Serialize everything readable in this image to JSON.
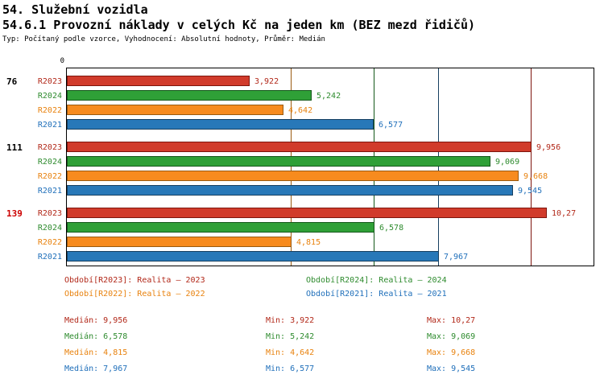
{
  "page": {
    "title_line1": "54. Služební vozidla",
    "title_line2": "54.6.1 Provozní náklady v celých Kč na jeden km (BEZ mezd řidičů)",
    "subtitle": "Typ: Počítaný podle vzorce, Vyhodnocení: Absolutní hodnoty, Průměr: Medián"
  },
  "series_styles": {
    "R2023": {
      "fill": "#d13b2b",
      "border": "#7e150d",
      "text": "#b22819"
    },
    "R2024": {
      "fill": "#2fa037",
      "border": "#14581a",
      "text": "#2e8b2e"
    },
    "R2022": {
      "fill": "#f78b1e",
      "border": "#9a5a10",
      "text": "#e8820e"
    },
    "R2021": {
      "fill": "#2878b8",
      "border": "#163f60",
      "text": "#1f6fba"
    }
  },
  "chart_data": {
    "type": "bar",
    "orientation": "horizontal",
    "title": "54.6.1 Provozní náklady v celých Kč na jeden km (BEZ mezd řidičů)",
    "axis": {
      "origin_label": "0",
      "value_min": 0,
      "value_max": 11.3,
      "grid": false
    },
    "series_order": [
      "R2023",
      "R2024",
      "R2022",
      "R2021"
    ],
    "groups": [
      {
        "label": "76",
        "label_color": "#000000",
        "bars": [
          {
            "series": "R2023",
            "value": 3.922,
            "value_label": "3,922"
          },
          {
            "series": "R2024",
            "value": 5.242,
            "value_label": "5,242"
          },
          {
            "series": "R2022",
            "value": 4.642,
            "value_label": "4,642"
          },
          {
            "series": "R2021",
            "value": 6.577,
            "value_label": "6,577"
          }
        ]
      },
      {
        "label": "111",
        "label_color": "#000000",
        "bars": [
          {
            "series": "R2023",
            "value": 9.956,
            "value_label": "9,956"
          },
          {
            "series": "R2024",
            "value": 9.069,
            "value_label": "9,069"
          },
          {
            "series": "R2022",
            "value": 9.668,
            "value_label": "9,668"
          },
          {
            "series": "R2021",
            "value": 9.545,
            "value_label": "9,545"
          }
        ]
      },
      {
        "label": "139",
        "label_color": "#cc0000",
        "bars": [
          {
            "series": "R2023",
            "value": 10.27,
            "value_label": "10,27"
          },
          {
            "series": "R2024",
            "value": 6.578,
            "value_label": "6,578"
          },
          {
            "series": "R2022",
            "value": 4.815,
            "value_label": "4,815"
          },
          {
            "series": "R2021",
            "value": 7.967,
            "value_label": "7,967"
          }
        ]
      }
    ],
    "median_lines": [
      {
        "series": "R2023",
        "value": 9.956
      },
      {
        "series": "R2024",
        "value": 6.578
      },
      {
        "series": "R2022",
        "value": 4.815
      },
      {
        "series": "R2021",
        "value": 7.967
      }
    ]
  },
  "legend": {
    "rows": [
      [
        {
          "series": "R2023",
          "label": "Období[R2023]: Realita – 2023"
        },
        {
          "series": "R2024",
          "label": "Období[R2024]: Realita – 2024"
        }
      ],
      [
        {
          "series": "R2022",
          "label": "Období[R2022]: Realita – 2022"
        },
        {
          "series": "R2021",
          "label": "Období[R2021]: Realita – 2021"
        }
      ]
    ]
  },
  "stats": [
    {
      "series": "R2023",
      "median": "Medián: 9,956",
      "min": "Min: 3,922",
      "max": "Max: 10,27"
    },
    {
      "series": "R2024",
      "median": "Medián: 6,578",
      "min": "Min: 5,242",
      "max": "Max: 9,069"
    },
    {
      "series": "R2022",
      "median": "Medián: 4,815",
      "min": "Min: 4,642",
      "max": "Max: 9,668"
    },
    {
      "series": "R2021",
      "median": "Medián: 7,967",
      "min": "Min: 6,577",
      "max": "Max: 9,545"
    }
  ]
}
